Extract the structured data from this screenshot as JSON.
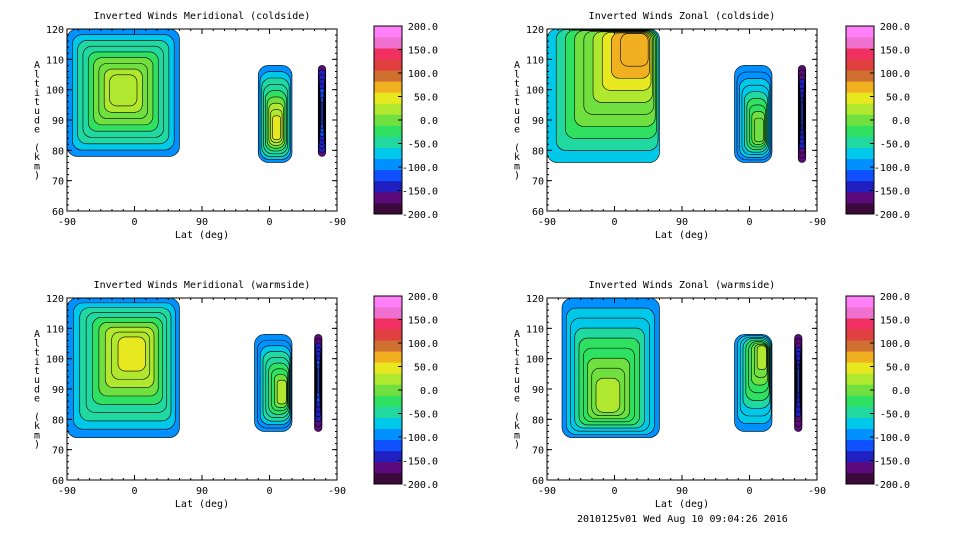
{
  "footer_text": "2010125v01 Wed Aug 10 09:04:26 2016",
  "chart_data": [
    {
      "type": "heatmap",
      "title": "Inverted Winds Meridional (coldside)",
      "xlabel": "Lat (deg)",
      "ylabel": "Altitude (km)",
      "xticks": [
        "-90",
        "0",
        "90",
        "0",
        "-90"
      ],
      "yticks": [
        60,
        70,
        80,
        90,
        100,
        110,
        120
      ],
      "ylim": [
        60,
        120
      ],
      "colorbar": {
        "min": -200,
        "max": 200,
        "labels": [
          "200.0",
          "150.0",
          "100.0",
          "50.0",
          "0.0",
          "-50.0",
          "-100.0",
          "-150.0",
          "-200.0"
        ]
      },
      "regions": [
        {
          "x": [
            -90,
            60
          ],
          "alt": [
            78,
            120
          ],
          "peak_value": 50,
          "peak_lat": -15,
          "peak_alt": 100
        },
        {
          "x": [
            165,
            210
          ],
          "alt": [
            76,
            108
          ],
          "peak_value": 60,
          "peak_lat": 190,
          "peak_alt": 86
        },
        {
          "x": [
            245,
            255
          ],
          "alt": [
            78,
            108
          ],
          "peak_value": -100,
          "peak_lat": 250,
          "peak_alt": 92
        }
      ]
    },
    {
      "type": "heatmap",
      "title": "Inverted Winds Zonal (coldside)",
      "xlabel": "Lat (deg)",
      "ylabel": "Altitude (km)",
      "xticks": [
        "-90",
        "0",
        "90",
        "0",
        "-90"
      ],
      "yticks": [
        60,
        70,
        80,
        90,
        100,
        110,
        120
      ],
      "ylim": [
        60,
        120
      ],
      "colorbar": {
        "min": -200,
        "max": 200,
        "labels": [
          "200.0",
          "150.0",
          "100.0",
          "50.0",
          "0.0",
          "-50.0",
          "-100.0",
          "-150.0",
          "-200.0"
        ]
      },
      "regions": [
        {
          "x": [
            -90,
            60
          ],
          "alt": [
            76,
            120
          ],
          "peak_value": 100,
          "peak_lat": 40,
          "peak_alt": 118
        },
        {
          "x": [
            160,
            210
          ],
          "alt": [
            76,
            108
          ],
          "peak_value": 20,
          "peak_lat": 195,
          "peak_alt": 85
        },
        {
          "x": [
            245,
            255
          ],
          "alt": [
            76,
            108
          ],
          "peak_value": -120,
          "peak_lat": 250,
          "peak_alt": 92
        }
      ]
    },
    {
      "type": "heatmap",
      "title": "Inverted Winds Meridional (warmside)",
      "xlabel": "Lat (deg)",
      "ylabel": "Altitude (km)",
      "xticks": [
        "-90",
        "0",
        "90",
        "0",
        "-90"
      ],
      "yticks": [
        60,
        70,
        80,
        90,
        100,
        110,
        120
      ],
      "ylim": [
        60,
        120
      ],
      "colorbar": {
        "min": -200,
        "max": 200,
        "labels": [
          "200.0",
          "150.0",
          "100.0",
          "50.0",
          "0.0",
          "-50.0",
          "-100.0",
          "-150.0",
          "-200.0"
        ]
      },
      "regions": [
        {
          "x": [
            -90,
            60
          ],
          "alt": [
            74,
            120
          ],
          "peak_value": 60,
          "peak_lat": 0,
          "peak_alt": 103
        },
        {
          "x": [
            160,
            210
          ],
          "alt": [
            76,
            108
          ],
          "peak_value": 30,
          "peak_lat": 200,
          "peak_alt": 88
        },
        {
          "x": [
            240,
            250
          ],
          "alt": [
            76,
            108
          ],
          "peak_value": -110,
          "peak_lat": 245,
          "peak_alt": 93
        }
      ]
    },
    {
      "type": "heatmap",
      "title": "Inverted Winds Zonal (warmside)",
      "xlabel": "Lat (deg)",
      "ylabel": "Altitude (km)",
      "xticks": [
        "-90",
        "0",
        "90",
        "0",
        "-90"
      ],
      "yticks": [
        60,
        70,
        80,
        90,
        100,
        110,
        120
      ],
      "ylim": [
        60,
        120
      ],
      "colorbar": {
        "min": -200,
        "max": 200,
        "labels": [
          "200.0",
          "150.0",
          "100.0",
          "50.0",
          "0.0",
          "-50.0",
          "-100.0",
          "-150.0",
          "-200.0"
        ]
      },
      "regions": [
        {
          "x": [
            -70,
            60
          ],
          "alt": [
            74,
            120
          ],
          "peak_value": 40,
          "peak_lat": -10,
          "peak_alt": 85
        },
        {
          "x": [
            160,
            210
          ],
          "alt": [
            76,
            108
          ],
          "peak_value": 40,
          "peak_lat": 200,
          "peak_alt": 103
        },
        {
          "x": [
            240,
            250
          ],
          "alt": [
            76,
            108
          ],
          "peak_value": -120,
          "peak_lat": 245,
          "peak_alt": 93
        }
      ]
    }
  ],
  "colors": {
    "levels": [
      "#3b0a3a",
      "#5a0a7a",
      "#2020c0",
      "#1050ff",
      "#0090ff",
      "#00c8e8",
      "#20d8a0",
      "#30e060",
      "#70e040",
      "#b0e830",
      "#e8e820",
      "#f0b020",
      "#d07030",
      "#e04040",
      "#f03060",
      "#f070d0",
      "#ff80f8"
    ]
  }
}
